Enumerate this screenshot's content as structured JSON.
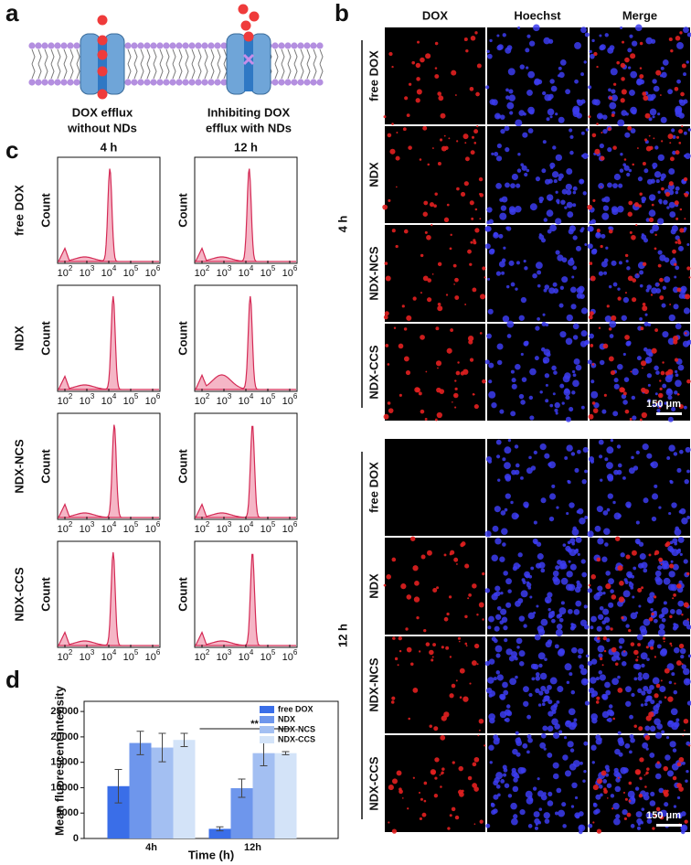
{
  "panel_labels": [
    "a",
    "b",
    "c",
    "d"
  ],
  "panel_a": {
    "captions": [
      [
        "DOX efflux",
        "without NDs"
      ],
      [
        "Inhibiting DOX",
        "efflux with NDs"
      ]
    ]
  },
  "panel_b": {
    "columns": [
      "DOX",
      "Hoechst",
      "Merge"
    ],
    "groups": [
      {
        "label": "4 h",
        "rows": [
          "free DOX",
          "NDX",
          "NDX-NCS",
          "NDX-CCS"
        ],
        "scale_bar": "150 μm"
      },
      {
        "label": "12 h",
        "rows": [
          "free DOX",
          "NDX",
          "NDX-NCS",
          "NDX-CCS"
        ],
        "scale_bar": "150 μm"
      }
    ]
  },
  "panel_c": {
    "columns": [
      "4 h",
      "12 h"
    ],
    "rows": [
      "free DOX",
      "NDX",
      "NDX-NCS",
      "NDX-CCS"
    ],
    "y_label": "Count",
    "x_tick_labels": [
      {
        "base": "10",
        "exp": "2"
      },
      {
        "base": "10",
        "exp": "3"
      },
      {
        "base": "10",
        "exp": "4"
      },
      {
        "base": "10",
        "exp": "5"
      },
      {
        "base": "10",
        "exp": "6"
      }
    ]
  },
  "chart_data": {
    "type": "bar",
    "xlabel": "Time (h)",
    "ylabel": "Mean fluorescent intensity",
    "categories": [
      "4h",
      "12h"
    ],
    "series": [
      {
        "name": "free DOX",
        "color": "#3a6ee8",
        "values": [
          10300,
          1900
        ],
        "errors": [
          3300,
          400
        ]
      },
      {
        "name": "NDX",
        "color": "#6e96ec",
        "values": [
          18800,
          9900
        ],
        "errors": [
          2300,
          1800
        ]
      },
      {
        "name": "NDX-NCS",
        "color": "#a3bff2",
        "values": [
          17900,
          16800
        ],
        "errors": [
          2800,
          2500
        ]
      },
      {
        "name": "NDX-CCS",
        "color": "#d3e3f8",
        "values": [
          19400,
          16800
        ],
        "errors": [
          1300,
          300
        ]
      }
    ],
    "ylim": [
      0,
      27000
    ],
    "yticks": [
      0,
      5000,
      10000,
      15000,
      20000,
      25000
    ],
    "legend": "upper right",
    "annotations": [
      {
        "text": "**"
      }
    ]
  }
}
